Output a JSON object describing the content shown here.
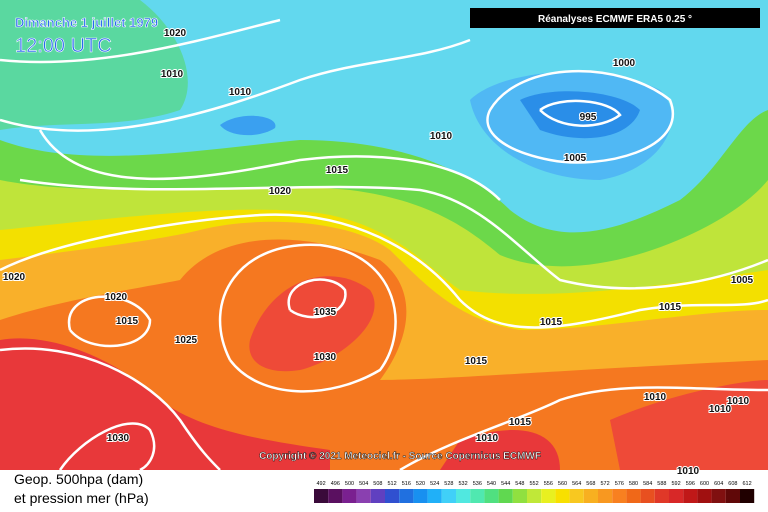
{
  "header": {
    "date": "Dimanche 1 juillet 1979",
    "time": "12:00 UTC",
    "source": "Réanalyses ECMWF ERA5 0.25 °"
  },
  "copyright": "Copyright © 2021 Meteociel.fr - Source Copernicus ECMWF",
  "legend": {
    "line1": "Geop. 500hpa (dam)",
    "line2": "et pression mer (hPa)",
    "scale": [
      492,
      496,
      500,
      504,
      508,
      512,
      516,
      520,
      524,
      528,
      532,
      536,
      540,
      544,
      548,
      552,
      556,
      560,
      564,
      568,
      572,
      576,
      580,
      584,
      588,
      592,
      596,
      600,
      604,
      608,
      612
    ]
  },
  "isobar_labels": [
    "1020",
    "1010",
    "1010",
    "1000",
    "995",
    "1010",
    "1005",
    "1015",
    "1020",
    "1020",
    "1020",
    "1015",
    "1025",
    "1035",
    "1030",
    "1015",
    "1005",
    "1015",
    "1015",
    "1010",
    "1010",
    "1010",
    "1015",
    "1010",
    "1030",
    "1010"
  ]
}
